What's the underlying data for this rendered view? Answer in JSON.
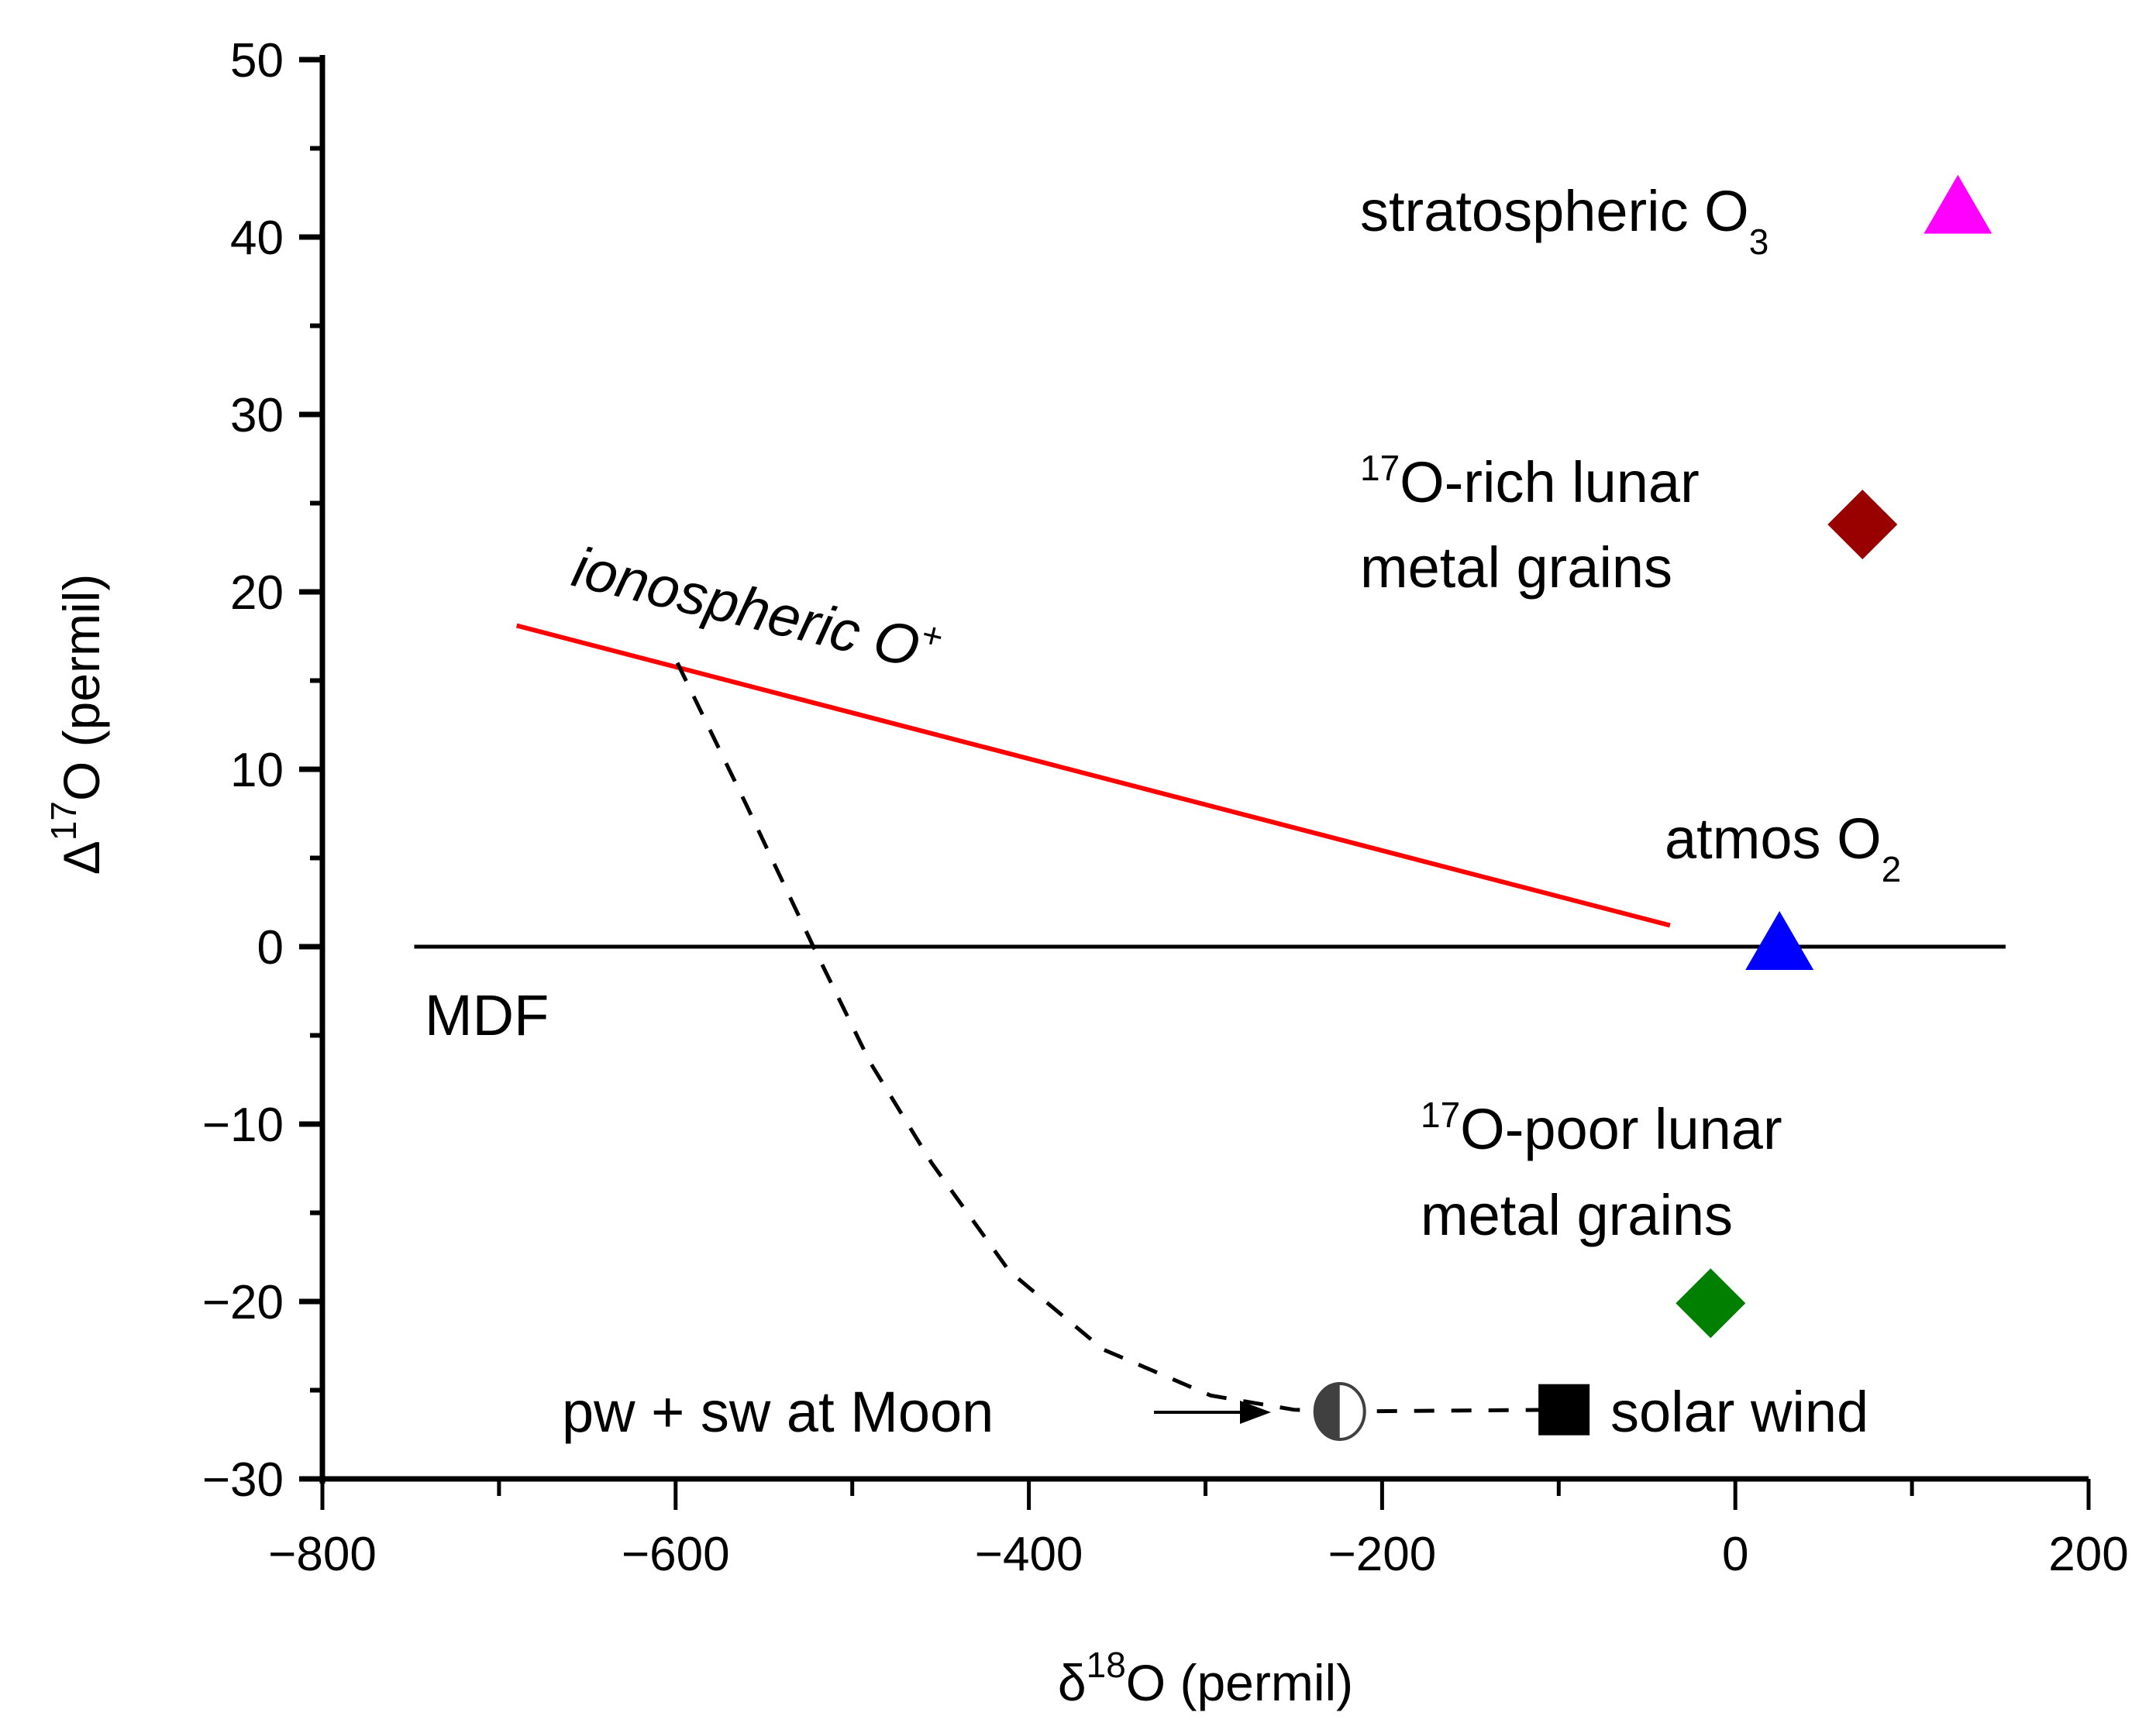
{
  "chart_data": {
    "type": "scatter",
    "title": "",
    "xlabel": "δ18O (permil)",
    "ylabel": "Δ17O (permil)",
    "xlabel_parts": {
      "base": "δ",
      "sup": "18",
      "rest": "O (permil)"
    },
    "ylabel_parts": {
      "base": "Δ",
      "sup": "17",
      "rest": "O (permil)"
    },
    "xlim": [
      -800,
      200
    ],
    "ylim": [
      -30,
      50
    ],
    "x_ticks": [
      -800,
      -600,
      -400,
      -200,
      0,
      200
    ],
    "x_tick_labels": [
      "−800",
      "−600",
      "−400",
      "−200",
      "0",
      "200"
    ],
    "x_minor_ticks": [
      -700,
      -500,
      -300,
      -100,
      100
    ],
    "y_ticks": [
      -30,
      -20,
      -10,
      0,
      10,
      20,
      30,
      40,
      50
    ],
    "y_tick_labels": [
      "−30",
      "−20",
      "−10",
      "0",
      "10",
      "20",
      "30",
      "40",
      "50"
    ],
    "y_minor_ticks": [
      -25,
      -15,
      -5,
      5,
      15,
      25,
      35,
      45
    ],
    "grid": false,
    "legend": "none (direct labels)",
    "points": [
      {
        "name": "stratospheric O3",
        "label": "stratospheric O",
        "label_sub": "3",
        "x": 126,
        "y": 41.5,
        "marker": "triangle",
        "color": "#ff00ff"
      },
      {
        "name": "17O-rich lunar metal grains",
        "label_sup": "17",
        "label_line1": "O-rich lunar",
        "label_line2": "metal grains",
        "x": 72,
        "y": 23.8,
        "marker": "diamond",
        "color": "#990000"
      },
      {
        "name": "atmos O2",
        "label": "atmos O",
        "label_sub": "2",
        "x": 25,
        "y": 0,
        "marker": "triangle",
        "color": "#0000ff"
      },
      {
        "name": "17O-poor lunar metal grains",
        "label_sup": "17",
        "label_line1": "O-poor lunar",
        "label_line2": "metal grains",
        "x": -14,
        "y": -20.1,
        "marker": "diamond",
        "color": "#007f00"
      },
      {
        "name": "pw + sw at Moon",
        "label": "pw + sw at Moon",
        "x": -224,
        "y": -26.2,
        "marker": "half-filled-circle",
        "color": "#404040"
      },
      {
        "name": "solar wind",
        "label": "solar wind",
        "x": -97,
        "y": -26.1,
        "marker": "square",
        "color": "#000000"
      }
    ],
    "lines": [
      {
        "name": "MDF",
        "label": "MDF",
        "style": "solid",
        "color": "#000000",
        "x": [
          -748,
          153
        ],
        "y": [
          0,
          0
        ]
      },
      {
        "name": "ionospheric O+",
        "label": "ionospheric O",
        "label_sup": "+",
        "style": "solid",
        "color": "#ff0000",
        "x": [
          -690,
          -37
        ],
        "y": [
          18.1,
          1.2
        ]
      },
      {
        "name": "mixing curve",
        "style": "dashed",
        "color": "#000000",
        "x": [
          -599,
          -560,
          -522,
          -490,
          -455,
          -411,
          -358,
          -297,
          -250,
          -224
        ],
        "y": [
          16.0,
          8.0,
          0.0,
          -6.5,
          -12.2,
          -18.3,
          -22.7,
          -25.3,
          -26.1,
          -26.2
        ]
      },
      {
        "name": "moon-to-solar-wind",
        "style": "dashed",
        "color": "#000000",
        "x": [
          -224,
          -97
        ],
        "y": [
          -26.2,
          -26.1
        ]
      }
    ],
    "annotations": [
      {
        "text": "pw + sw at Moon",
        "arrow_to": [
          -224,
          -26.2
        ]
      }
    ]
  }
}
